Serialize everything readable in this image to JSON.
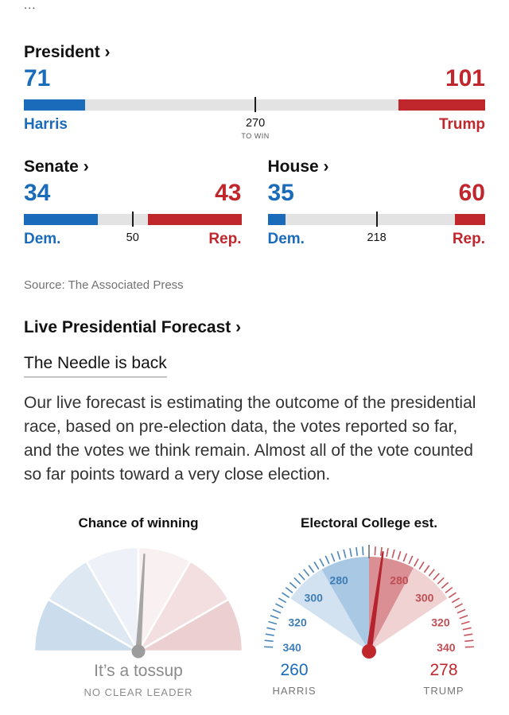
{
  "page": {
    "overflow_text": "...",
    "source": "Source: The Associated Press"
  },
  "forecast": {
    "title": "Live Presidential Forecast ›",
    "link_text": "The Needle is back",
    "body": "Our live forecast is estimating the outcome of the presidential race, based on pre-election data, the votes reported so far, and the votes we think remain. Almost all of the vote counted so far points toward a very close election."
  },
  "colors": {
    "dem": "#1a6cbb",
    "rep": "#c0272d",
    "bar_bg": "#e3e3e3"
  },
  "chart_data": [
    {
      "id": "president",
      "type": "bar",
      "title": "President ›",
      "categories": [
        "Harris",
        "Trump"
      ],
      "values": [
        71,
        101
      ],
      "total_seats": 538,
      "threshold": 270,
      "threshold_label": "270",
      "threshold_sublabel": "TO WIN"
    },
    {
      "id": "senate",
      "type": "bar",
      "title": "Senate ›",
      "categories": [
        "Dem.",
        "Rep."
      ],
      "values": [
        34,
        43
      ],
      "total_seats": 100,
      "threshold": 50,
      "threshold_label": "50",
      "threshold_sublabel": ""
    },
    {
      "id": "house",
      "type": "bar",
      "title": "House ›",
      "categories": [
        "Dem.",
        "Rep."
      ],
      "values": [
        35,
        60
      ],
      "total_seats": 435,
      "threshold": 218,
      "threshold_label": "218",
      "threshold_sublabel": ""
    },
    {
      "id": "chance-of-winning",
      "type": "gauge",
      "title": "Chance of winning",
      "needle_angle_deg": 3.5,
      "needle_color": "#a6a6a6",
      "hub_color": "#9c9c9c",
      "segment_colors": [
        "#cbdcec",
        "#dde8f3",
        "#eef2f8",
        "#f9f1f1",
        "#f3dfe0",
        "#eccfd1"
      ],
      "status": "It’s a tossup",
      "substatus": "NO CLEAR LEADER"
    },
    {
      "id": "electoral-college",
      "type": "gauge",
      "title": "Electoral College est.",
      "axis_labels": [
        "280",
        "300",
        "320",
        "340"
      ],
      "axis_label_angles": [
        23,
        46,
        68,
        87
      ],
      "label_color_left": "#3e7db6",
      "label_color_right": "#c04e55",
      "tick_color_left": "#4a86ba",
      "tick_color_right": "#c4555c",
      "bands": [
        {
          "from": -56,
          "to": 0,
          "color": "#d3e2f0"
        },
        {
          "from": -30,
          "to": 0,
          "color": "#a9c8e4"
        },
        {
          "from": 0,
          "to": 56,
          "color": "#f0d2d3"
        },
        {
          "from": 0,
          "to": 28,
          "color": "#d98f93"
        }
      ],
      "needle_angle_deg": 8,
      "needle_color": "#b5232e",
      "hub_color": "#c0272d",
      "harris": {
        "value": "260",
        "label": "HARRIS"
      },
      "trump": {
        "value": "278",
        "label": "TRUMP"
      }
    }
  ]
}
